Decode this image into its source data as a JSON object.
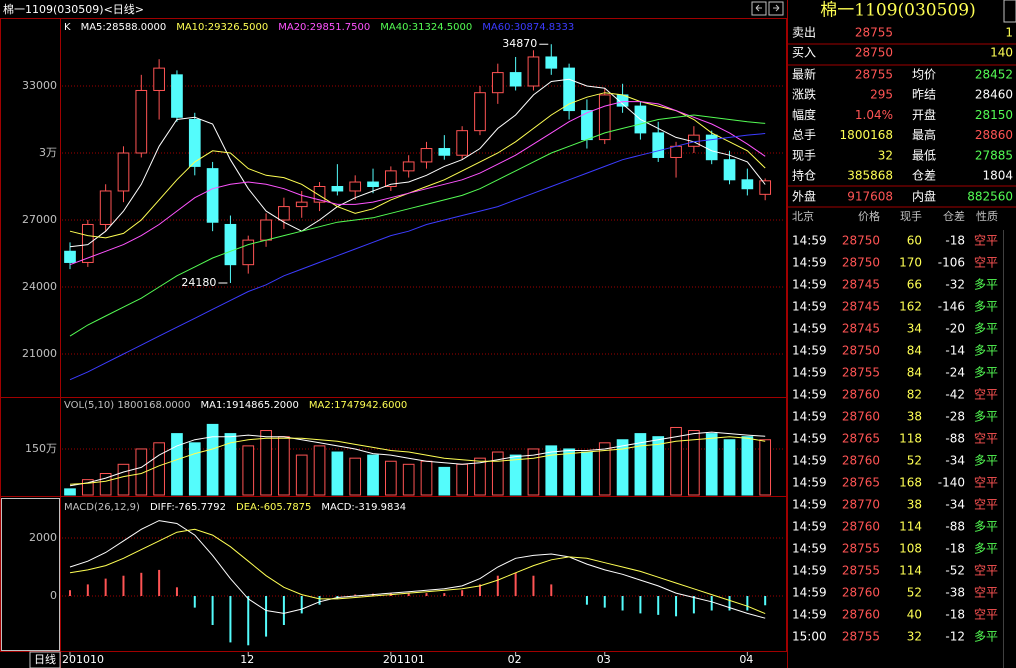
{
  "window_title": "棉一1109(030509)<日线>",
  "period_label": "日线",
  "chart_data": [
    {
      "type": "candlestick",
      "label": "K",
      "ylim": [
        19120,
        35955
      ],
      "yticks": [
        21000,
        24000,
        27000,
        {
          "value": 30000,
          "label": "3万"
        },
        33000
      ],
      "grid": true,
      "up_color": "#ff5454",
      "down_color": "#54fcfc",
      "high_mark": 34870,
      "low_mark": 24180,
      "candles": [
        [
          25600,
          26000,
          24800,
          25100
        ],
        [
          25100,
          27000,
          24900,
          26800
        ],
        [
          26800,
          28600,
          26500,
          28300
        ],
        [
          28300,
          30300,
          27800,
          30000
        ],
        [
          30000,
          33500,
          29800,
          32800
        ],
        [
          32800,
          34200,
          31500,
          33800
        ],
        [
          33500,
          33700,
          31400,
          31600
        ],
        [
          31500,
          31800,
          29000,
          29400
        ],
        [
          29300,
          29600,
          26500,
          26900
        ],
        [
          26800,
          27200,
          24180,
          25000
        ],
        [
          25000,
          26300,
          24600,
          26100
        ],
        [
          26100,
          27300,
          25800,
          27000
        ],
        [
          27000,
          28000,
          26600,
          27600
        ],
        [
          27600,
          28300,
          27100,
          27800
        ],
        [
          27800,
          28700,
          27400,
          28500
        ],
        [
          28500,
          29500,
          28100,
          28300
        ],
        [
          28300,
          29000,
          27900,
          28700
        ],
        [
          28700,
          29300,
          28200,
          28500
        ],
        [
          28500,
          29400,
          28300,
          29200
        ],
        [
          29200,
          29900,
          28900,
          29600
        ],
        [
          29600,
          30500,
          29300,
          30200
        ],
        [
          30200,
          30800,
          29700,
          29900
        ],
        [
          29900,
          31200,
          29700,
          31000
        ],
        [
          31000,
          33000,
          30800,
          32700
        ],
        [
          32700,
          34000,
          32200,
          33600
        ],
        [
          33600,
          34300,
          32800,
          33000
        ],
        [
          33000,
          34600,
          32800,
          34300
        ],
        [
          34300,
          34870,
          33500,
          33800
        ],
        [
          33800,
          34000,
          31500,
          31900
        ],
        [
          31900,
          32400,
          30200,
          30600
        ],
        [
          30600,
          32900,
          30400,
          32600
        ],
        [
          32600,
          33100,
          31800,
          32100
        ],
        [
          32100,
          32300,
          30600,
          30900
        ],
        [
          30900,
          31400,
          29600,
          29800
        ],
        [
          29800,
          30500,
          28900,
          30300
        ],
        [
          30300,
          31200,
          30000,
          30800
        ],
        [
          30800,
          31000,
          29500,
          29700
        ],
        [
          29700,
          30100,
          28600,
          28800
        ],
        [
          28800,
          29300,
          28100,
          28400
        ],
        [
          28150,
          28860,
          27885,
          28755
        ]
      ],
      "series": [
        {
          "name": "MA5:28588.0000",
          "color": "#ffffff",
          "values": [
            25800,
            25900,
            26500,
            27400,
            28600,
            30300,
            31500,
            31600,
            31300,
            29700,
            28400,
            27400,
            26900,
            26500,
            27000,
            27600,
            28000,
            28300,
            28600,
            28700,
            29000,
            29400,
            29700,
            30200,
            31100,
            31700,
            32600,
            33200,
            33300,
            33000,
            32900,
            32200,
            31500,
            31100,
            30700,
            30500,
            30100,
            29900,
            29600,
            28588
          ]
        },
        {
          "name": "MA10:29326.5000",
          "color": "#ffff54",
          "values": [
            26500,
            26300,
            26200,
            26400,
            27000,
            27900,
            28800,
            29600,
            30100,
            30000,
            29300,
            29000,
            28900,
            28600,
            28100,
            27600,
            27300,
            27500,
            27900,
            28200,
            28500,
            28800,
            29200,
            29600,
            30000,
            30500,
            31100,
            31700,
            32200,
            32500,
            32700,
            32600,
            32300,
            32100,
            31900,
            31500,
            30900,
            30500,
            30100,
            29326.5
          ]
        },
        {
          "name": "MA20:29851.7500",
          "color": "#ff54ff",
          "values": [
            25000,
            25300,
            25600,
            25900,
            26300,
            26800,
            27400,
            28000,
            28400,
            28600,
            28700,
            28600,
            28400,
            28100,
            27900,
            27700,
            27700,
            27800,
            28000,
            28200,
            28400,
            28600,
            28800,
            29100,
            29500,
            29900,
            30400,
            30900,
            31400,
            31800,
            32100,
            32300,
            32300,
            32200,
            31900,
            31600,
            31300,
            30900,
            30400,
            29851.75
          ]
        },
        {
          "name": "MA40:31324.5000",
          "color": "#54fc54",
          "values": [
            21800,
            22300,
            22700,
            23100,
            23500,
            24000,
            24500,
            24900,
            25300,
            25600,
            25900,
            26100,
            26300,
            26500,
            26700,
            26900,
            27000,
            27100,
            27300,
            27500,
            27700,
            27900,
            28100,
            28400,
            28800,
            29200,
            29600,
            30000,
            30300,
            30600,
            30900,
            31100,
            31300,
            31500,
            31600,
            31700,
            31600,
            31500,
            31400,
            31324.5
          ]
        },
        {
          "name": "MA60:30874.8333",
          "color": "#3c3cff",
          "values": [
            19850,
            20200,
            20600,
            21000,
            21400,
            21800,
            22200,
            22600,
            23000,
            23400,
            23800,
            24100,
            24500,
            24800,
            25100,
            25400,
            25700,
            26000,
            26300,
            26500,
            26800,
            27000,
            27200,
            27400,
            27600,
            27900,
            28200,
            28500,
            28800,
            29100,
            29400,
            29700,
            29900,
            30100,
            30300,
            30500,
            30600,
            30700,
            30800,
            30874.8333
          ]
        }
      ]
    },
    {
      "type": "volume",
      "label": "VOL(5,10) 1800168.0000",
      "ylim": [
        0,
        3160000
      ],
      "yticks": [
        {
          "value": 1500000,
          "label": "150万"
        }
      ],
      "grid": true,
      "values": [
        200000,
        500000,
        700000,
        1000000,
        1500000,
        1700000,
        2000000,
        1700000,
        2300000,
        2000000,
        1600000,
        2100000,
        1900000,
        1300000,
        1600000,
        1400000,
        1200000,
        1300000,
        1100000,
        1000000,
        1100000,
        900000,
        1000000,
        1200000,
        1400000,
        1300000,
        1500000,
        1600000,
        1500000,
        1400000,
        1700000,
        1800000,
        2000000,
        1900000,
        2200000,
        2100000,
        2000000,
        1800000,
        1900000,
        1800168
      ],
      "series": [
        {
          "name": "MA1:1914865.2000",
          "color": "#ffffff",
          "values": [
            300000,
            400000,
            550000,
            750000,
            900000,
            1300000,
            1600000,
            1800000,
            1900000,
            1900000,
            1950000,
            1900000,
            1900000,
            1800000,
            1700000,
            1600000,
            1500000,
            1350000,
            1300000,
            1200000,
            1100000,
            1050000,
            1000000,
            1050000,
            1150000,
            1250000,
            1300000,
            1400000,
            1450000,
            1450000,
            1500000,
            1600000,
            1700000,
            1800000,
            1900000,
            2000000,
            2050000,
            2000000,
            1950000,
            1914865.2
          ]
        },
        {
          "name": "MA2:1747942.6000",
          "color": "#ffff54",
          "values": [
            350000,
            380000,
            450000,
            600000,
            700000,
            950000,
            1150000,
            1350000,
            1500000,
            1700000,
            1800000,
            1850000,
            1850000,
            1850000,
            1800000,
            1750000,
            1650000,
            1550000,
            1450000,
            1400000,
            1300000,
            1200000,
            1150000,
            1100000,
            1100000,
            1150000,
            1200000,
            1300000,
            1350000,
            1400000,
            1450000,
            1500000,
            1600000,
            1650000,
            1750000,
            1800000,
            1850000,
            1900000,
            1850000,
            1747942.6
          ]
        }
      ]
    },
    {
      "type": "macd",
      "label": "MACD(26,12,9)",
      "ylim": [
        -1931,
        3380
      ],
      "yticks": [
        0,
        2000
      ],
      "grid": true,
      "categories": [
        "201010",
        null,
        null,
        null,
        null,
        null,
        null,
        null,
        null,
        null,
        "12",
        null,
        null,
        null,
        null,
        null,
        null,
        null,
        "201101",
        null,
        null,
        null,
        null,
        null,
        null,
        "02",
        null,
        null,
        null,
        null,
        "03",
        null,
        null,
        null,
        null,
        null,
        null,
        null,
        "04",
        null
      ],
      "histogram": {
        "name": "MACD:-319.9834",
        "color": "#ffffff",
        "values": [
          200,
          400,
          600,
          700,
          800,
          900,
          300,
          -400,
          -1000,
          -1600,
          -1700,
          -1400,
          -1000,
          -600,
          -300,
          -100,
          50,
          80,
          100,
          100,
          100,
          100,
          200,
          400,
          700,
          800,
          700,
          400,
          0,
          -300,
          -400,
          -500,
          -600,
          -650,
          -700,
          -600,
          -500,
          -500,
          -500,
          -319.9834
        ]
      },
      "series": [
        {
          "name": "DIFF:-765.7792",
          "color": "#ffffff",
          "values": [
            1000,
            1200,
            1500,
            1900,
            2300,
            2600,
            2500,
            2100,
            1400,
            600,
            -100,
            -500,
            -600,
            -450,
            -200,
            -50,
            0,
            50,
            100,
            150,
            200,
            250,
            350,
            600,
            1000,
            1300,
            1400,
            1450,
            1350,
            1100,
            900,
            750,
            550,
            350,
            100,
            -50,
            -200,
            -400,
            -600,
            -765.7792
          ]
        },
        {
          "name": "DEA:-605.7875",
          "color": "#ffff54",
          "values": [
            800,
            900,
            1050,
            1300,
            1600,
            1900,
            2200,
            2300,
            2100,
            1700,
            1200,
            700,
            300,
            50,
            -100,
            -100,
            -50,
            0,
            50,
            100,
            150,
            200,
            250,
            350,
            550,
            800,
            1050,
            1250,
            1350,
            1300,
            1150,
            1000,
            850,
            650,
            450,
            250,
            50,
            -150,
            -350,
            -605.7875
          ]
        }
      ]
    }
  ],
  "quote": {
    "title": "棉一1109(030509)",
    "orders": [
      {
        "label": "卖出",
        "price": "28755",
        "volume": "1"
      },
      {
        "label": "买入",
        "price": "28750",
        "volume": "140"
      }
    ],
    "stats": [
      {
        "label": "最新",
        "value": "28755",
        "color": "#ff5454"
      },
      {
        "label": "均价",
        "value": "28452",
        "color": "#54fc54"
      },
      {
        "label": "涨跌",
        "value": "295",
        "color": "#ff5454"
      },
      {
        "label": "昨结",
        "value": "28460",
        "color": "#ffffff"
      },
      {
        "label": "幅度",
        "value": "1.04%",
        "color": "#ff5454"
      },
      {
        "label": "开盘",
        "value": "28150",
        "color": "#54fc54"
      },
      {
        "label": "总手",
        "value": "1800168",
        "color": "#ffff54"
      },
      {
        "label": "最高",
        "value": "28860",
        "color": "#ff5454"
      },
      {
        "label": "现手",
        "value": "32",
        "color": "#ffff54"
      },
      {
        "label": "最低",
        "value": "27885",
        "color": "#54fc54"
      },
      {
        "label": "持仓",
        "value": "385868",
        "color": "#ffff54"
      },
      {
        "label": "仓差",
        "value": "1804",
        "color": "#ffffff"
      }
    ],
    "outer": [
      {
        "label": "外盘",
        "value": "917608",
        "color": "#ff5454"
      },
      {
        "label": "内盘",
        "value": "882560",
        "color": "#54fc54"
      }
    ],
    "trades_header": [
      "北京",
      "价格",
      "现手",
      "仓差",
      "性质"
    ],
    "trades": [
      [
        "14:59",
        "28750",
        "60",
        "-18",
        "空平"
      ],
      [
        "14:59",
        "28750",
        "170",
        "-106",
        "空平"
      ],
      [
        "14:59",
        "28745",
        "66",
        "-32",
        "多平"
      ],
      [
        "14:59",
        "28745",
        "162",
        "-146",
        "多平"
      ],
      [
        "14:59",
        "28745",
        "34",
        "-20",
        "多平"
      ],
      [
        "14:59",
        "28750",
        "84",
        "-14",
        "多平"
      ],
      [
        "14:59",
        "28755",
        "84",
        "-24",
        "多平"
      ],
      [
        "14:59",
        "28760",
        "82",
        "-42",
        "空平"
      ],
      [
        "14:59",
        "28760",
        "38",
        "-28",
        "多平"
      ],
      [
        "14:59",
        "28765",
        "118",
        "-88",
        "空平"
      ],
      [
        "14:59",
        "28760",
        "52",
        "-34",
        "多平"
      ],
      [
        "14:59",
        "28765",
        "168",
        "-140",
        "空平"
      ],
      [
        "14:59",
        "28770",
        "38",
        "-34",
        "空平"
      ],
      [
        "14:59",
        "28760",
        "114",
        "-88",
        "多平"
      ],
      [
        "14:59",
        "28755",
        "108",
        "-18",
        "多平"
      ],
      [
        "14:59",
        "28755",
        "114",
        "-52",
        "空平"
      ],
      [
        "14:59",
        "28760",
        "52",
        "-38",
        "空平"
      ],
      [
        "14:59",
        "28760",
        "40",
        "-18",
        "空平"
      ],
      [
        "15:00",
        "28755",
        "32",
        "-12",
        "多平"
      ]
    ],
    "nature_colors": [
      "#ff5454",
      "#ff5454",
      "#54fc54",
      "#54fc54",
      "#54fc54",
      "#54fc54",
      "#54fc54",
      "#ff5454",
      "#54fc54",
      "#ff5454",
      "#54fc54",
      "#ff5454",
      "#ff5454",
      "#54fc54",
      "#54fc54",
      "#ff5454",
      "#ff5454",
      "#ff5454",
      "#54fc54"
    ]
  }
}
